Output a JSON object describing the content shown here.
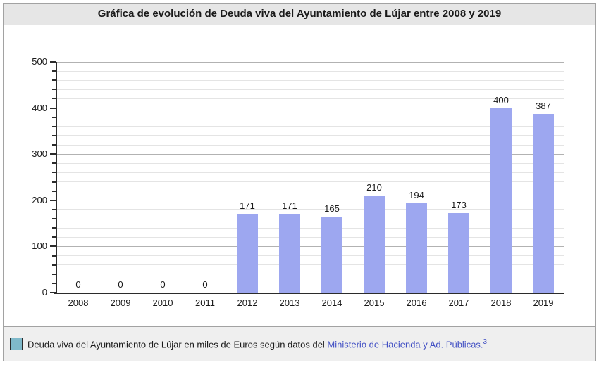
{
  "title": "Gráfica de evolución de Deuda viva del Ayuntamiento de Lújar entre 2008 y 2019",
  "chart_data": {
    "type": "bar",
    "categories": [
      "2008",
      "2009",
      "2010",
      "2011",
      "2012",
      "2013",
      "2014",
      "2015",
      "2016",
      "2017",
      "2018",
      "2019"
    ],
    "values": [
      0,
      0,
      0,
      0,
      171,
      171,
      165,
      210,
      194,
      173,
      400,
      387
    ],
    "title": "Gráfica de evolución de Deuda viva del Ayuntamiento de Lújar entre 2008 y 2019",
    "xlabel": "",
    "ylabel": "",
    "ylim": [
      0,
      500
    ],
    "ytick_major": 100,
    "ytick_minor": 20,
    "grid": true,
    "value_labels_shown": true,
    "legend_position": "bottom",
    "series_name": "Deuda viva del Ayuntamiento de Lújar en miles de Euros"
  },
  "legend": {
    "text_before_link": "Deuda viva del Ayuntamiento de Lújar en miles de Euros según datos del ",
    "link_text": "Ministerio de Hacienda y Ad. Públicas.",
    "footnote_ref": "3"
  },
  "colors": {
    "bar": "#9da7f0",
    "legend_swatch": "#7fb9ca",
    "link": "#4250c4"
  }
}
